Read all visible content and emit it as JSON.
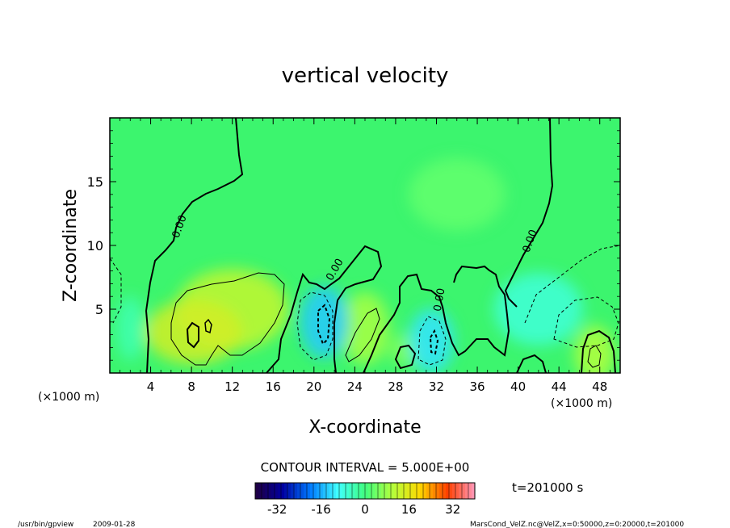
{
  "chart_data": {
    "type": "heatmap",
    "title": "vertical velocity",
    "xlabel": "X-coordinate",
    "ylabel": "Z-coordinate",
    "x_unit": "(×1000 m)",
    "y_unit": "(×1000 m)",
    "xlim": [
      0,
      50
    ],
    "ylim": [
      0,
      20
    ],
    "x_ticks": [
      4,
      8,
      12,
      16,
      20,
      24,
      28,
      32,
      36,
      40,
      44,
      48
    ],
    "y_ticks": [
      5,
      10,
      15
    ],
    "contour_interval": "CONTOUR INTERVAL = 5.000E+00",
    "zero_contour_label": "0.00",
    "time_label": "t=201000 s",
    "colorbar_ticks": [
      -32,
      -16,
      0,
      16,
      32
    ],
    "colorbar_range": [
      -40,
      40
    ],
    "colormap": [
      "#200040",
      "#0000a0",
      "#0078ff",
      "#40ffff",
      "#40ff80",
      "#b4ff3c",
      "#ffd800",
      "#ff4000",
      "#ff99bb"
    ],
    "grid": false,
    "updrafts": [
      {
        "x": 12,
        "z": 5.0,
        "w": 12
      },
      {
        "x": 8.2,
        "z": 3.2,
        "w": 14
      },
      {
        "x": 25,
        "z": 3.5,
        "w": 9
      },
      {
        "x": 47.5,
        "z": 1.5,
        "w": 10
      },
      {
        "x": 29,
        "z": 1.8,
        "w": 6
      },
      {
        "x": 34,
        "z": 14,
        "w": 3
      }
    ],
    "downdrafts": [
      {
        "x": 21,
        "z": 4.0,
        "w": -14
      },
      {
        "x": 31.5,
        "z": 2.5,
        "w": -12
      },
      {
        "x": 42,
        "z": 5.0,
        "w": -7
      },
      {
        "x": 2,
        "z": 3.5,
        "w": -4
      }
    ]
  },
  "footer": {
    "program": "/usr/bin/gpview",
    "date": "2009-01-28",
    "source": "MarsCond_VelZ.nc@VelZ,x=0:50000,z=0:20000,t=201000"
  }
}
